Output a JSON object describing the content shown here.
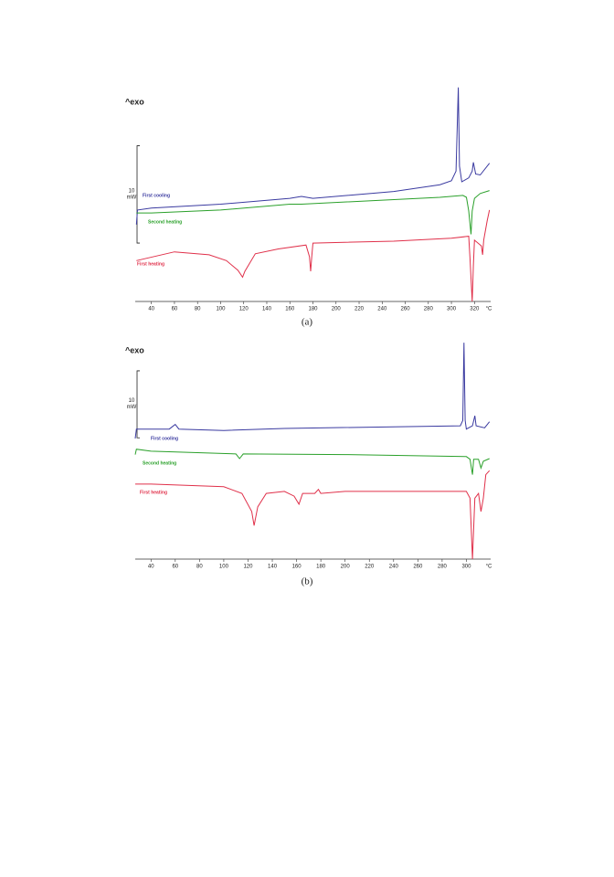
{
  "chart_data": [
    {
      "type": "line",
      "title": "^exo",
      "caption": "(a)",
      "x_label": "°C",
      "xlim": [
        26,
        334
      ],
      "xticks": [
        40,
        60,
        80,
        100,
        120,
        140,
        160,
        180,
        200,
        220,
        240,
        260,
        280,
        300,
        320
      ],
      "ylim": [
        0,
        23
      ],
      "scale_bar": {
        "value": 10,
        "unit": "mW"
      },
      "series": [
        {
          "name": "First cooling",
          "color": "#3a3aa0",
          "x": [
            27,
            28,
            40,
            100,
            160,
            170,
            180,
            250,
            290,
            300,
            304,
            306,
            307,
            309,
            315,
            318,
            319,
            321,
            325,
            333
          ],
          "values": [
            7.9,
            9.4,
            9.6,
            10.0,
            10.6,
            10.8,
            10.6,
            11.3,
            12.0,
            12.4,
            13.4,
            22.0,
            13.9,
            12.3,
            12.7,
            13.4,
            14.3,
            13.1,
            13.0,
            14.2
          ]
        },
        {
          "name": "Second heating",
          "color": "#2aa02a",
          "x": [
            27,
            40,
            100,
            160,
            170,
            290,
            310,
            313,
            315,
            317,
            318,
            320,
            325,
            333
          ],
          "values": [
            9.1,
            9.1,
            9.4,
            10.0,
            10.0,
            10.7,
            10.9,
            10.7,
            9.3,
            6.9,
            9.3,
            10.6,
            11.1,
            11.4
          ]
        },
        {
          "name": "First heating",
          "color": "#e0304a",
          "x": [
            27,
            60,
            90,
            105,
            115,
            119,
            121,
            130,
            150,
            174,
            177,
            178,
            179,
            180,
            250,
            300,
            315,
            316,
            318,
            319,
            320,
            326,
            327,
            328,
            331,
            333
          ],
          "values": [
            4.2,
            5.1,
            4.8,
            4.2,
            3.2,
            2.5,
            3.1,
            4.9,
            5.4,
            5.8,
            4.6,
            3.1,
            4.6,
            6.0,
            6.2,
            6.5,
            6.7,
            4.6,
            0,
            3.7,
            6.3,
            5.7,
            4.8,
            6.3,
            8.3,
            9.4
          ]
        }
      ]
    },
    {
      "type": "line",
      "title": "^exo",
      "caption": "(b)",
      "x_label": "°C",
      "xlim": [
        27,
        320
      ],
      "xticks": [
        40,
        60,
        80,
        100,
        120,
        140,
        160,
        180,
        200,
        220,
        240,
        260,
        280,
        300
      ],
      "ylim": [
        0,
        33
      ],
      "scale_bar": {
        "value": 10,
        "unit": "mW"
      },
      "series": [
        {
          "name": "First cooling",
          "color": "#3a3aa0",
          "x": [
            27,
            28,
            40,
            55,
            60,
            63,
            100,
            150,
            295,
            297,
            298,
            299,
            300,
            305,
            307,
            308,
            315,
            319
          ],
          "values": [
            18.0,
            19.4,
            19.4,
            19.4,
            20.1,
            19.4,
            19.2,
            19.5,
            19.9,
            20.7,
            32.3,
            20.7,
            19.4,
            19.9,
            21.4,
            19.9,
            19.6,
            20.5
          ]
        },
        {
          "name": "Second heating",
          "color": "#2aa02a",
          "x": [
            27,
            28,
            40,
            110,
            113,
            116,
            200,
            300,
            303,
            305,
            306,
            310,
            312,
            314,
            319
          ],
          "values": [
            15.6,
            16.4,
            16.1,
            15.7,
            15.0,
            15.7,
            15.6,
            15.3,
            14.9,
            12.6,
            14.9,
            14.9,
            13.6,
            14.6,
            15.0
          ]
        },
        {
          "name": "First heating",
          "color": "#e0304a",
          "x": [
            27,
            40,
            100,
            115,
            123,
            125,
            128,
            135,
            150,
            158,
            162,
            165,
            175,
            178,
            180,
            200,
            300,
            303,
            305,
            307,
            310,
            312,
            314,
            316,
            319
          ],
          "values": [
            11.2,
            11.2,
            10.8,
            9.8,
            7.1,
            5.0,
            7.8,
            9.8,
            10.1,
            9.4,
            8.2,
            9.8,
            9.8,
            10.4,
            9.8,
            10.1,
            10.1,
            9.1,
            0,
            9.1,
            9.8,
            7.1,
            9.1,
            12.6,
            13.2
          ]
        }
      ]
    }
  ]
}
